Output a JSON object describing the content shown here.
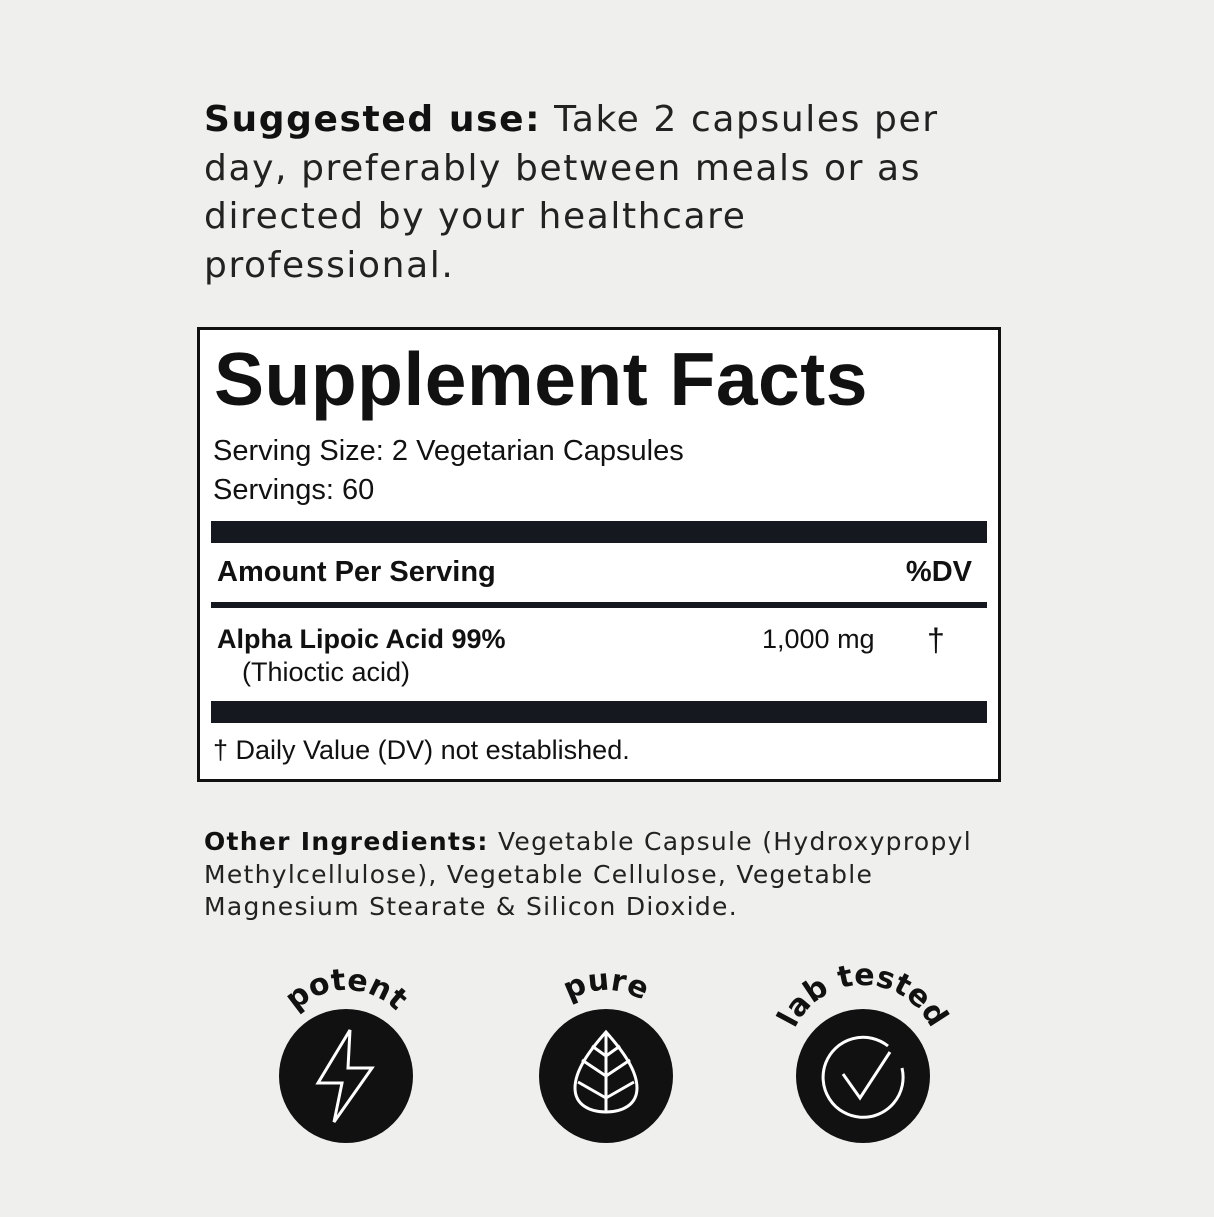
{
  "suggested_use": {
    "label": "Suggested use:",
    "text": " Take 2 capsules per day, preferably between meals or as directed by your healthcare professional."
  },
  "facts": {
    "title": "Supplement Facts",
    "serving_size": "Serving Size: 2 Vegetarian Capsules",
    "servings": "Servings: 60",
    "amount_header": "Amount Per Serving",
    "dv_header": "%DV",
    "ingredient": {
      "name": "Alpha Lipoic Acid 99%",
      "sub": "(Thioctic acid)",
      "amount": "1,000 mg",
      "dv": "†"
    },
    "footnote": "† Daily Value (DV) not established."
  },
  "other_ingredients": {
    "label": "Other Ingredients:",
    "text": " Vegetable Capsule (Hydroxypropyl Methylcellulose), Vegetable Cellulose, Vegetable Magnesium Stearate & Silicon Dioxide."
  },
  "badges": [
    {
      "label": "potent",
      "icon": "lightning-bolt-icon"
    },
    {
      "label": "pure",
      "icon": "leaf-icon"
    },
    {
      "label": "lab tested",
      "icon": "check-circle-icon"
    }
  ],
  "colors": {
    "background": "#efefed",
    "ink": "#111111",
    "bar": "#15181f"
  }
}
